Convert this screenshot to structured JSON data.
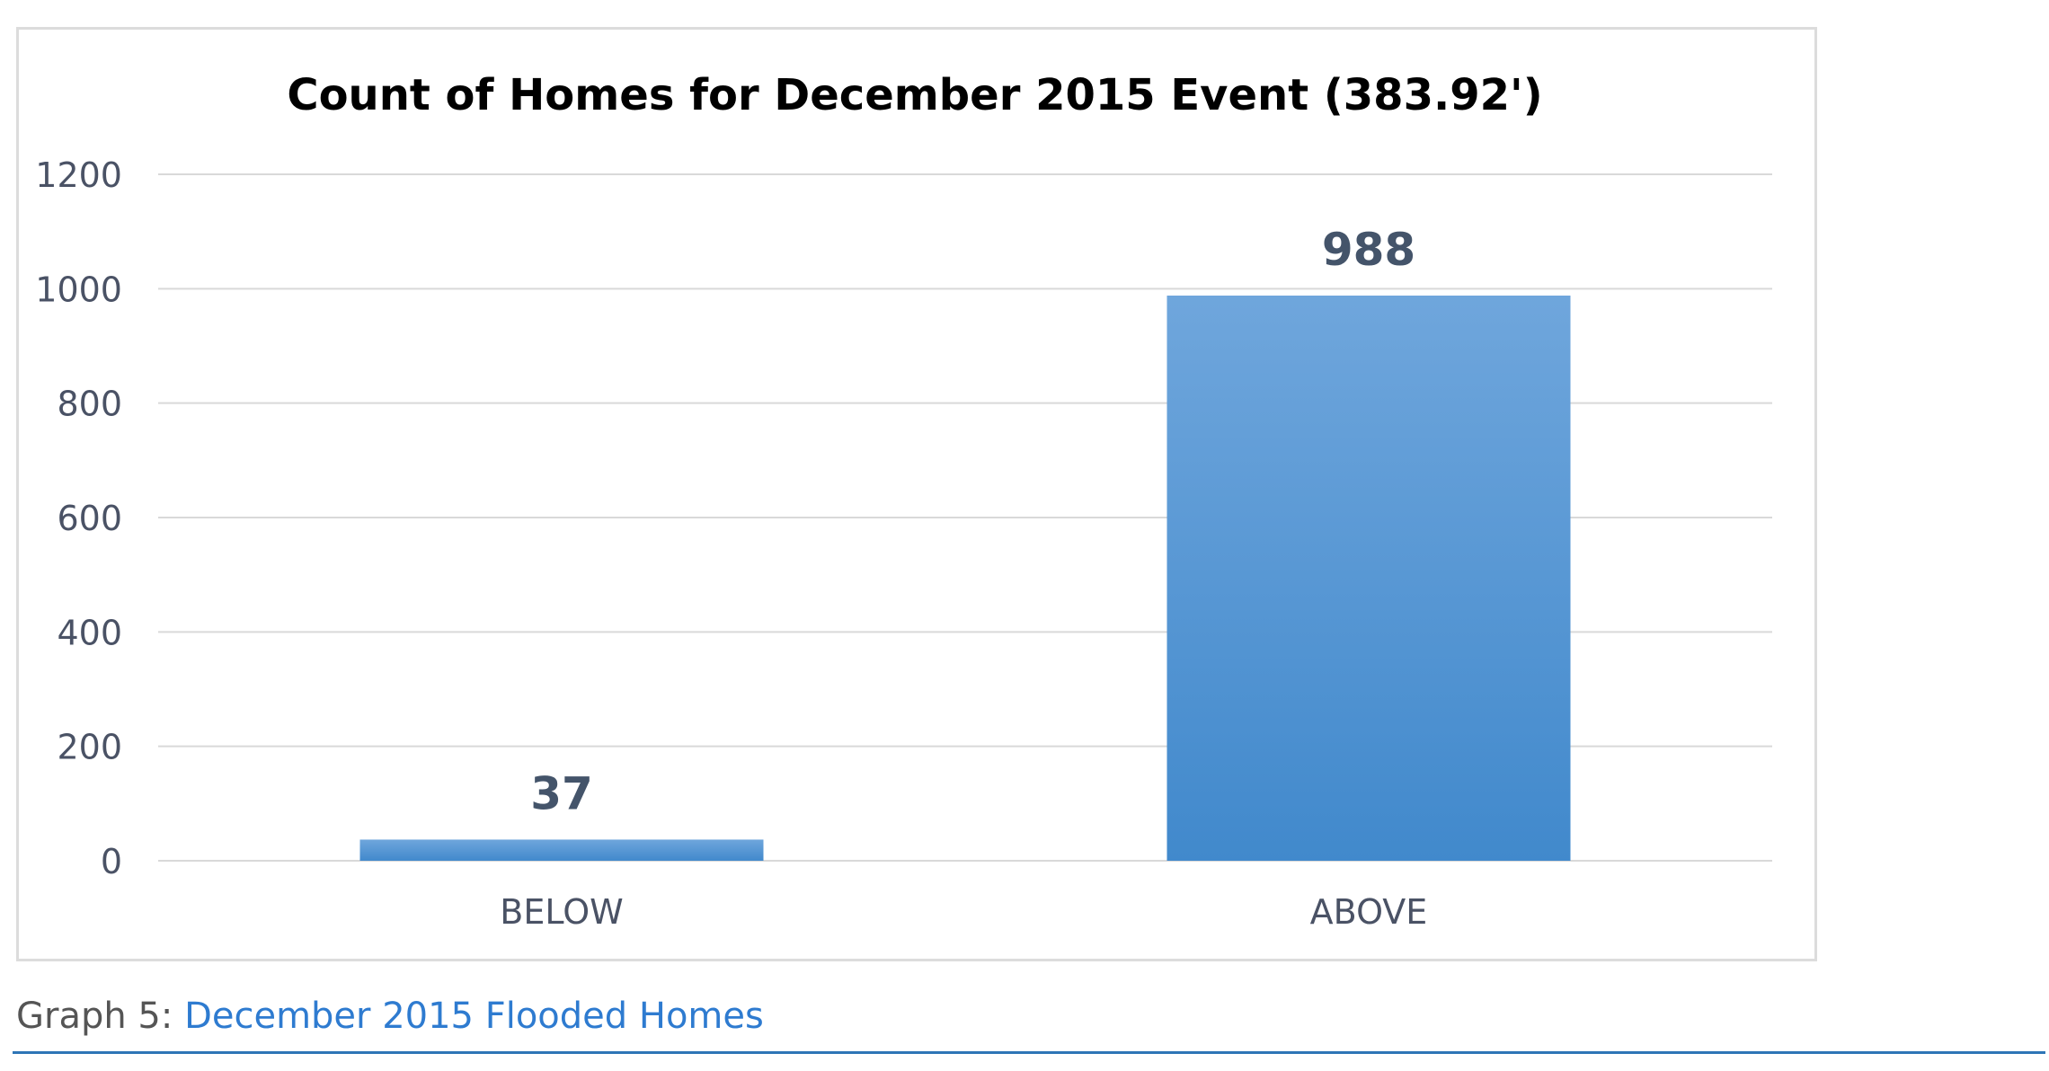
{
  "chart_data": {
    "type": "bar",
    "title": "Count of Homes for December 2015 Event (383.92')",
    "categories": [
      "BELOW",
      "ABOVE"
    ],
    "values": [
      37,
      988
    ],
    "data_labels": [
      "37",
      "988"
    ],
    "xlabel": "",
    "ylabel": "",
    "ylim": [
      0,
      1200
    ],
    "yticks": [
      0,
      200,
      400,
      600,
      800,
      1000,
      1200
    ],
    "ytick_labels": [
      "0",
      "200",
      "400",
      "600",
      "800",
      "1000",
      "1200"
    ],
    "grid": true,
    "legend": "none",
    "colors": {
      "bar_top": "#6fa6dc",
      "bar_bottom": "#4189cc",
      "grid": "#d9d9d9",
      "tick_text": "#4a5265",
      "data_label": "#44546a",
      "title": "#000000"
    }
  },
  "caption": {
    "prefix": "Graph 5: ",
    "text": "December 2015 Flooded Homes"
  }
}
